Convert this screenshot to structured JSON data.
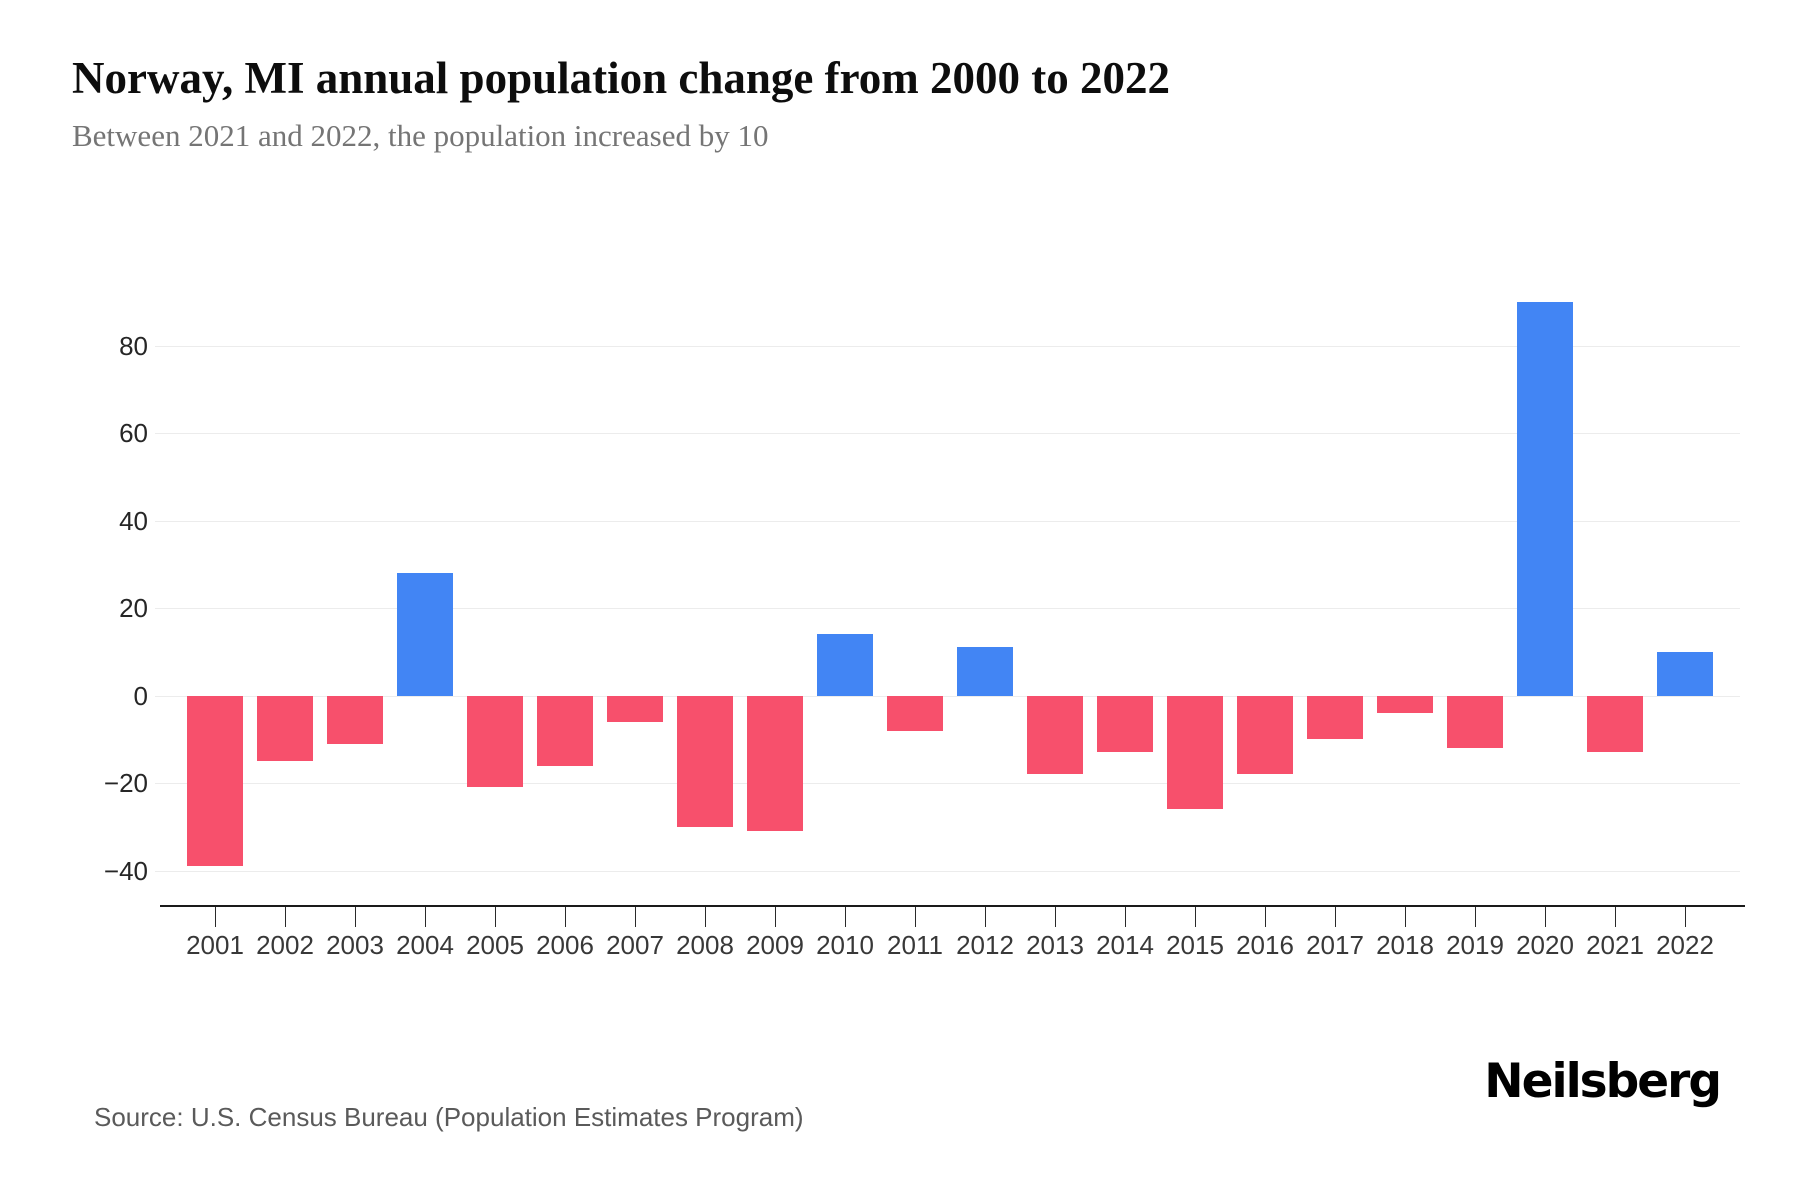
{
  "header": {
    "title": "Norway, MI annual population change from 2000 to 2022",
    "subtitle": "Between 2021 and 2022, the population increased by 10"
  },
  "footer": {
    "source": "Source: U.S. Census Bureau (Population Estimates Program)",
    "brand": "Neilsberg"
  },
  "chart_data": {
    "type": "bar",
    "title": "Norway, MI annual population change from 2000 to 2022",
    "subtitle": "Between 2021 and 2022, the population increased by 10",
    "categories": [
      "2001",
      "2002",
      "2003",
      "2004",
      "2005",
      "2006",
      "2007",
      "2008",
      "2009",
      "2010",
      "2011",
      "2012",
      "2013",
      "2014",
      "2015",
      "2016",
      "2017",
      "2018",
      "2019",
      "2020",
      "2021",
      "2022"
    ],
    "values": [
      -39,
      -15,
      -11,
      28,
      -21,
      -16,
      -6,
      -30,
      -31,
      14,
      -8,
      11,
      -18,
      -13,
      -26,
      -18,
      -10,
      -4,
      -12,
      90,
      -13,
      10
    ],
    "xlabel": "",
    "ylabel": "",
    "yticks": [
      80,
      60,
      40,
      20,
      0,
      -20,
      -40
    ],
    "ylim": [
      -45,
      95
    ],
    "grid": "horizontal",
    "legend_position": "none",
    "colors": {
      "positive": "#4285f4",
      "negative": "#f7506c"
    }
  }
}
